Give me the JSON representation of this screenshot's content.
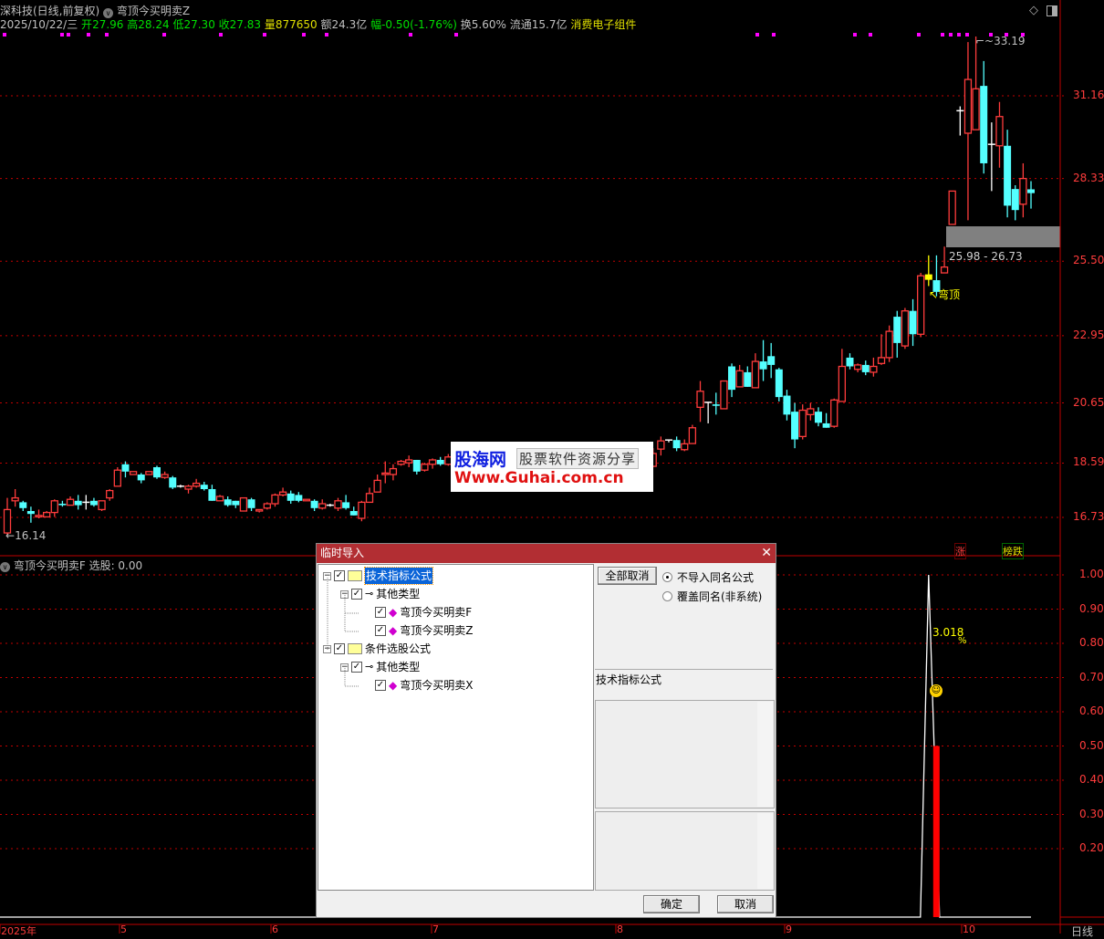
{
  "header": {
    "stock": "深科技(日线,前复权)",
    "indicator": "弯顶今买明卖Z",
    "date": "2025/10/22/三",
    "open_label": "开",
    "open": "27.96",
    "high_label": "高",
    "high": "28.24",
    "low_label": "低",
    "low": "27.30",
    "close_label": "收",
    "close": "27.83",
    "volume_label": "量",
    "volume": "877650",
    "amount": "额24.3亿",
    "change_label": "幅",
    "change": "-0.50(-1.76%)",
    "turnover": "换5.60%",
    "float": "流通15.7亿",
    "sector": "消费电子组件"
  },
  "colors": {
    "up": "#ff3c3c",
    "down": "#54ffff",
    "grid": "#c00000",
    "dialog_title": "#b22e33",
    "signal": "#ff00ff",
    "label_yellow": "#ffff00"
  },
  "price_axis": [
    "31.16",
    "28.33",
    "25.50",
    "22.95",
    "20.65",
    "18.59",
    "16.73"
  ],
  "indicator_axis": [
    "1.00",
    "0.90",
    "0.80",
    "0.70",
    "0.60",
    "0.50",
    "0.40",
    "0.30",
    "0.20"
  ],
  "time_axis": [
    "2025年",
    "5",
    "6",
    "7",
    "8",
    "9",
    "10"
  ],
  "period_label": "日线",
  "annotations": {
    "low_price": "16.14",
    "high_price": "33.19",
    "range": "25.98 - 26.73",
    "signal_text": "弯顶",
    "indicator_value": "3.018",
    "indicator_pct": "%",
    "rise_tag": "涨",
    "rank_tag": "榜跌"
  },
  "lower_panel": {
    "title": "弯顶今买明卖F",
    "select_label": "选股: 0.00"
  },
  "logo": {
    "name": "股海网",
    "slogan": "股票软件资源分享",
    "url": "Www.Guhai.com.cn"
  },
  "dialog": {
    "title": "临时导入",
    "tree": [
      {
        "label": "技术指标公式",
        "type": "folder",
        "checked": true,
        "selected": true
      },
      {
        "label": "其他类型",
        "type": "group",
        "checked": true
      },
      {
        "label": "弯顶今买明卖F",
        "type": "formula",
        "checked": true
      },
      {
        "label": "弯顶今买明卖Z",
        "type": "formula",
        "checked": true
      },
      {
        "label": "条件选股公式",
        "type": "folder",
        "checked": true
      },
      {
        "label": "其他类型",
        "type": "group",
        "checked": true
      },
      {
        "label": "弯顶今买明卖X",
        "type": "formula",
        "checked": true
      }
    ],
    "deselect_all": "全部取消",
    "radio_skip": "不导入同名公式",
    "radio_overwrite": "覆盖同名(非系统)",
    "radio_selected": "skip",
    "category_label": "技术指标公式",
    "ok": "确定",
    "cancel": "取消"
  },
  "chart_data": {
    "type": "candlestick",
    "ohlc_format": [
      "open",
      "high",
      "low",
      "close"
    ],
    "price_range": [
      16.14,
      33.19
    ],
    "candles": [
      [
        16.2,
        17.4,
        16.14,
        17.0
      ],
      [
        17.3,
        17.7,
        17.1,
        17.4
      ],
      [
        17.25,
        17.3,
        16.95,
        17.05
      ],
      [
        16.95,
        17.1,
        16.55,
        16.85
      ],
      [
        16.75,
        17.0,
        16.7,
        16.8
      ],
      [
        16.75,
        16.95,
        16.75,
        16.9
      ],
      [
        16.9,
        17.35,
        16.75,
        17.3
      ],
      [
        17.2,
        17.3,
        17.1,
        17.15
      ],
      [
        17.15,
        17.45,
        17.15,
        17.35
      ],
      [
        17.3,
        17.5,
        17.0,
        17.15
      ],
      [
        17.25,
        17.5,
        17.0,
        17.25
      ],
      [
        17.3,
        17.4,
        17.1,
        17.15
      ],
      [
        17.0,
        17.3,
        16.95,
        17.3
      ],
      [
        17.4,
        17.7,
        17.3,
        17.65
      ],
      [
        17.8,
        18.45,
        17.8,
        18.35
      ],
      [
        18.55,
        18.65,
        18.1,
        18.3
      ],
      [
        18.2,
        18.3,
        18.2,
        18.3
      ],
      [
        18.2,
        18.25,
        17.9,
        18.0
      ],
      [
        18.2,
        18.3,
        18.25,
        18.3
      ],
      [
        18.45,
        18.5,
        18.05,
        18.1
      ],
      [
        18.1,
        18.3,
        18.05,
        18.2
      ],
      [
        18.1,
        18.15,
        17.7,
        17.75
      ],
      [
        17.8,
        17.85,
        17.75,
        17.8
      ],
      [
        17.7,
        17.85,
        17.55,
        17.8
      ],
      [
        17.8,
        18.05,
        17.75,
        17.9
      ],
      [
        17.85,
        17.95,
        17.65,
        17.7
      ],
      [
        17.7,
        17.85,
        17.3,
        17.3
      ],
      [
        17.3,
        17.5,
        17.3,
        17.45
      ],
      [
        17.35,
        17.45,
        17.1,
        17.15
      ],
      [
        17.3,
        17.3,
        17.05,
        17.15
      ],
      [
        16.95,
        17.4,
        16.95,
        17.4
      ],
      [
        17.35,
        17.4,
        16.95,
        17.05
      ],
      [
        16.95,
        17.0,
        16.9,
        17.0
      ],
      [
        17.05,
        17.25,
        17.0,
        17.2
      ],
      [
        17.2,
        17.55,
        17.1,
        17.5
      ],
      [
        17.5,
        17.75,
        17.45,
        17.6
      ],
      [
        17.55,
        17.65,
        17.2,
        17.3
      ],
      [
        17.5,
        17.6,
        17.25,
        17.3
      ],
      [
        17.3,
        17.35,
        17.3,
        17.35
      ],
      [
        17.3,
        17.35,
        16.95,
        17.05
      ],
      [
        17.05,
        17.35,
        17.0,
        17.2
      ],
      [
        17.15,
        17.2,
        17.1,
        17.15
      ],
      [
        17.05,
        17.4,
        16.95,
        17.3
      ],
      [
        17.25,
        17.5,
        17.0,
        17.05
      ],
      [
        16.95,
        17.1,
        16.8,
        16.8
      ],
      [
        16.7,
        17.3,
        16.6,
        17.25
      ],
      [
        17.25,
        17.75,
        17.25,
        17.55
      ],
      [
        17.6,
        18.2,
        17.6,
        18.0
      ],
      [
        18.2,
        18.65,
        17.9,
        18.25
      ],
      [
        18.2,
        18.55,
        18.0,
        18.4
      ],
      [
        18.55,
        18.7,
        18.5,
        18.65
      ],
      [
        18.6,
        18.85,
        18.45,
        18.7
      ],
      [
        18.7,
        18.7,
        18.2,
        18.3
      ],
      [
        18.35,
        18.6,
        18.3,
        18.55
      ],
      [
        18.55,
        18.75,
        18.4,
        18.7
      ],
      [
        18.7,
        18.8,
        18.5,
        18.55
      ],
      [
        18.55,
        18.9,
        18.5,
        18.8
      ],
      [
        18.8,
        18.95,
        18.6,
        18.65
      ],
      [
        18.65,
        18.7,
        18.4,
        18.45
      ],
      [
        18.45,
        18.65,
        18.35,
        18.6
      ],
      [
        18.6,
        18.85,
        18.55,
        18.8
      ],
      [
        18.8,
        18.9,
        18.6,
        18.7
      ],
      [
        18.7,
        18.75,
        18.4,
        18.5
      ],
      [
        18.5,
        18.7,
        18.45,
        18.65
      ],
      [
        18.65,
        18.8,
        18.5,
        18.55
      ],
      [
        18.55,
        18.6,
        18.3,
        18.35
      ],
      [
        18.35,
        18.55,
        18.3,
        18.5
      ],
      [
        18.5,
        18.7,
        18.45,
        18.6
      ],
      [
        18.6,
        18.7,
        18.4,
        18.45
      ],
      [
        18.45,
        18.5,
        18.2,
        18.3
      ],
      [
        18.3,
        18.5,
        18.25,
        18.45
      ],
      [
        18.45,
        18.6,
        18.35,
        18.4
      ],
      [
        18.4,
        18.55,
        18.3,
        18.5
      ],
      [
        18.5,
        18.65,
        18.4,
        18.45
      ],
      [
        18.45,
        18.5,
        18.25,
        18.35
      ],
      [
        18.35,
        18.6,
        18.3,
        18.55
      ],
      [
        18.55,
        18.7,
        18.45,
        18.5
      ],
      [
        18.5,
        18.55,
        18.3,
        18.4
      ],
      [
        18.4,
        18.6,
        18.35,
        18.55
      ],
      [
        18.55,
        18.7,
        18.5,
        18.65
      ],
      [
        18.65,
        18.75,
        18.5,
        18.55
      ],
      [
        18.6,
        18.65,
        18.4,
        18.45
      ],
      [
        18.48,
        19.1,
        18.45,
        18.92
      ],
      [
        19.07,
        19.5,
        18.85,
        19.35
      ],
      [
        19.38,
        19.4,
        19.3,
        19.38
      ],
      [
        19.38,
        19.5,
        19.0,
        19.1
      ],
      [
        19.05,
        19.4,
        19.0,
        19.25
      ],
      [
        19.26,
        19.9,
        19.26,
        19.8
      ],
      [
        20.5,
        21.4,
        20.0,
        21.05
      ],
      [
        20.67,
        20.67,
        19.95,
        20.67
      ],
      [
        20.6,
        21.0,
        20.25,
        20.55
      ],
      [
        20.45,
        21.4,
        20.45,
        21.4
      ],
      [
        21.9,
        22.0,
        20.85,
        21.1
      ],
      [
        21.2,
        21.95,
        21.2,
        21.75
      ],
      [
        21.7,
        21.9,
        21.2,
        21.2
      ],
      [
        21.17,
        22.35,
        21.17,
        22.07
      ],
      [
        22.07,
        22.8,
        21.4,
        21.8
      ],
      [
        22.25,
        22.7,
        21.5,
        21.95
      ],
      [
        21.8,
        21.85,
        20.7,
        20.85
      ],
      [
        20.9,
        21.1,
        20.05,
        20.25
      ],
      [
        20.35,
        20.65,
        19.1,
        19.4
      ],
      [
        19.5,
        20.6,
        19.4,
        20.4
      ],
      [
        20.25,
        20.65,
        20.05,
        20.45
      ],
      [
        20.35,
        20.5,
        19.85,
        19.97
      ],
      [
        19.95,
        20.3,
        19.8,
        19.8
      ],
      [
        19.85,
        20.8,
        19.8,
        20.75
      ],
      [
        20.7,
        22.5,
        20.7,
        21.9
      ],
      [
        22.2,
        22.35,
        21.8,
        21.9
      ],
      [
        21.8,
        22.0,
        21.7,
        21.95
      ],
      [
        21.95,
        22.1,
        21.6,
        21.7
      ],
      [
        21.7,
        22.2,
        21.55,
        21.9
      ],
      [
        22.0,
        23.0,
        21.95,
        22.2
      ],
      [
        22.2,
        23.3,
        22.05,
        23.1
      ],
      [
        23.6,
        23.8,
        22.2,
        22.7
      ],
      [
        22.6,
        23.9,
        22.5,
        23.8
      ],
      [
        23.8,
        24.2,
        22.6,
        23.0
      ],
      [
        23.0,
        25.1,
        22.9,
        25.0
      ],
      [
        25.05,
        25.7,
        24.65,
        24.95
      ],
      [
        24.85,
        25.7,
        24.3,
        24.45
      ],
      [
        25.1,
        26.0,
        25.1,
        25.3
      ],
      [
        26.76,
        27.9,
        26.76,
        27.9
      ],
      [
        30.65,
        30.8,
        29.8,
        30.65
      ],
      [
        29.88,
        33.0,
        26.9,
        31.72
      ],
      [
        30.0,
        33.19,
        30.0,
        31.4
      ],
      [
        31.5,
        32.35,
        28.5,
        28.85
      ],
      [
        29.5,
        30.25,
        27.9,
        29.5
      ],
      [
        29.45,
        30.95,
        28.7,
        30.45
      ],
      [
        29.45,
        30.0,
        27.0,
        27.4
      ],
      [
        27.97,
        28.1,
        26.9,
        27.25
      ],
      [
        27.45,
        28.85,
        27.0,
        28.33
      ],
      [
        27.96,
        28.24,
        27.3,
        27.83
      ]
    ],
    "highlight_candles": [
      117
    ],
    "indicator": {
      "name": "弯顶今买明卖F",
      "range": [
        0,
        1
      ],
      "spike_candle": 117,
      "spike_value": 1.0,
      "bar_value": 0.5
    }
  }
}
